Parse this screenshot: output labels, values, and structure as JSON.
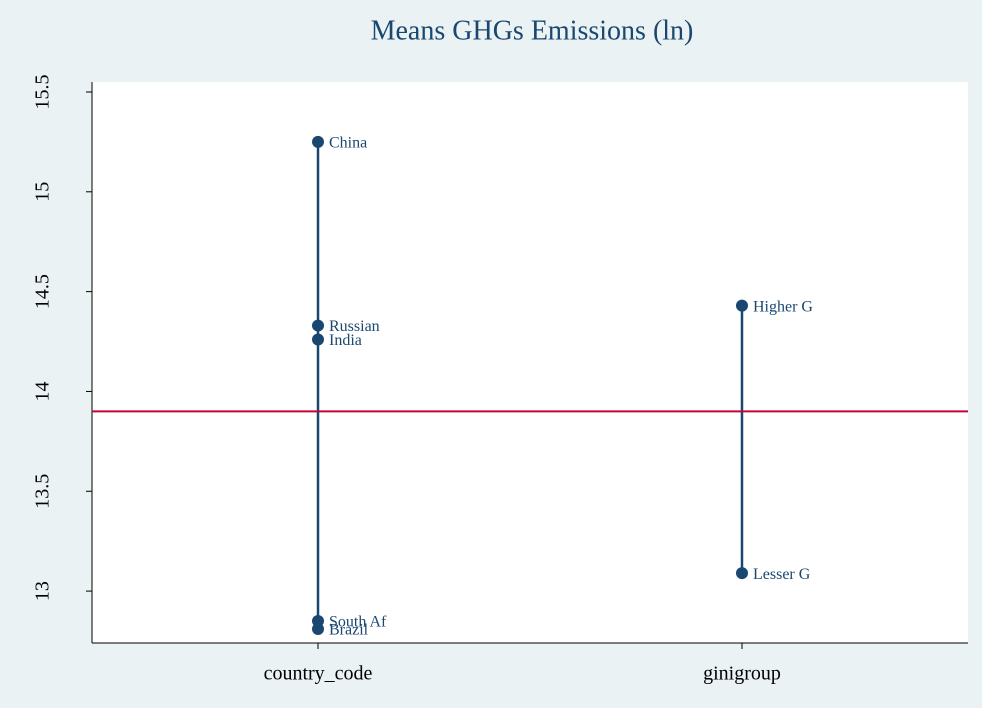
{
  "chart_data": {
    "type": "dot",
    "title": "Means GHGs Emissions (ln)",
    "categories": [
      "country_code",
      "ginigroup"
    ],
    "groups": [
      {
        "labels": [
          "China",
          "Russian",
          "India",
          "South Af",
          "Brazil"
        ],
        "values": [
          15.25,
          14.33,
          14.26,
          12.85,
          12.81
        ]
      },
      {
        "labels": [
          "Higher G",
          "Lesser G"
        ],
        "values": [
          14.43,
          13.09
        ]
      }
    ],
    "reference_line": 13.9,
    "color": "#1a476f",
    "reference_color": "#c10534",
    "ylim": [
      12.74,
      15.55
    ],
    "yticks": [
      13,
      13.5,
      14,
      14.5,
      15,
      15.5
    ]
  }
}
